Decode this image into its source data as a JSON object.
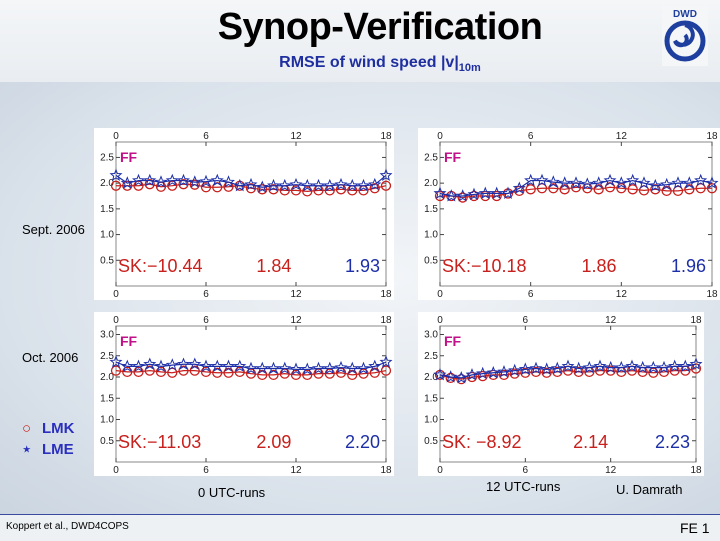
{
  "header": {
    "title": "Synop-Verification",
    "subtitle_main": "RMSE of wind speed |v|",
    "subtitle_sub": "10m",
    "logo_text": "DWD"
  },
  "labels": {
    "row1": "Sept. 2006",
    "row2": "Oct. 2006",
    "col1": "0 UTC-runs",
    "col2": "12 UTC-runs"
  },
  "legend": [
    {
      "symbol": "circle",
      "label": "LMK",
      "color": "#c8201c"
    },
    {
      "symbol": "star",
      "label": "LME",
      "color": "#2a2fbf"
    }
  ],
  "footer": {
    "author_left": "Koppert et al., DWD4COPS",
    "author_right": "U. Damrath",
    "page": "FE 1"
  },
  "colors": {
    "lmk": "#c8201c",
    "lme": "#1c2fa8",
    "ff": "#c0118a"
  },
  "chart_data": [
    {
      "type": "line",
      "panel": "Sept. 2006, 0 UTC-runs",
      "xticks": [
        0,
        6,
        12,
        18
      ],
      "xlim": [
        0,
        18
      ],
      "yticks": [
        "0.5",
        "1.0",
        "1.5",
        "2.0",
        "2.5"
      ],
      "ylim": [
        0,
        2.8
      ],
      "tag": "FF",
      "series": [
        {
          "name": "LMK",
          "values": [
            1.95,
            1.95,
            1.95,
            1.98,
            1.93,
            1.95,
            1.98,
            1.97,
            1.92,
            1.92,
            1.93,
            1.95,
            1.9,
            1.88,
            1.88,
            1.86,
            1.86,
            1.84,
            1.86,
            1.86,
            1.88,
            1.86,
            1.86,
            1.9,
            1.95
          ]
        },
        {
          "name": "LME",
          "values": [
            2.15,
            2.0,
            2.05,
            2.05,
            2.02,
            2.05,
            2.05,
            2.02,
            2.03,
            2.05,
            2.02,
            1.95,
            1.97,
            1.92,
            1.95,
            1.95,
            1.97,
            1.95,
            1.95,
            1.95,
            1.97,
            1.95,
            1.95,
            1.97,
            2.15
          ]
        }
      ],
      "sk_text": "SK:−10.44",
      "lmk_value": "1.84",
      "lme_value": "1.93"
    },
    {
      "type": "line",
      "panel": "Sept. 2006, 12 UTC-runs",
      "xticks": [
        0,
        6,
        12,
        18
      ],
      "xlim": [
        0,
        18
      ],
      "yticks": [
        "0.5",
        "1.0",
        "1.5",
        "2.0",
        "2.5"
      ],
      "ylim": [
        0,
        2.8
      ],
      "tag": "FF",
      "series": [
        {
          "name": "LMK",
          "values": [
            1.75,
            1.75,
            1.72,
            1.75,
            1.75,
            1.75,
            1.8,
            1.85,
            1.88,
            1.9,
            1.9,
            1.88,
            1.92,
            1.9,
            1.88,
            1.92,
            1.9,
            1.88,
            1.86,
            1.88,
            1.85,
            1.85,
            1.88,
            1.9,
            1.9
          ]
        },
        {
          "name": "LME",
          "values": [
            1.8,
            1.75,
            1.75,
            1.78,
            1.8,
            1.8,
            1.8,
            1.9,
            2.05,
            2.05,
            2.02,
            2.0,
            2.0,
            1.98,
            2.0,
            2.05,
            2.0,
            2.05,
            2.0,
            1.95,
            1.97,
            2.0,
            2.0,
            2.05,
            2.0
          ]
        }
      ],
      "sk_text": "SK:−10.18",
      "lmk_value": "1.86",
      "lme_value": "1.96"
    },
    {
      "type": "line",
      "panel": "Oct. 2006, 0 UTC-runs",
      "xticks": [
        0,
        6,
        12,
        18
      ],
      "xlim": [
        0,
        18
      ],
      "yticks": [
        "0.5",
        "1.0",
        "1.5",
        "2.0",
        "2.5",
        "3.0"
      ],
      "ylim": [
        0,
        3.2
      ],
      "tag": "FF",
      "series": [
        {
          "name": "LMK",
          "values": [
            2.15,
            2.12,
            2.12,
            2.15,
            2.12,
            2.1,
            2.15,
            2.15,
            2.12,
            2.1,
            2.1,
            2.12,
            2.08,
            2.05,
            2.05,
            2.08,
            2.05,
            2.05,
            2.08,
            2.08,
            2.1,
            2.05,
            2.08,
            2.1,
            2.15
          ]
        },
        {
          "name": "LME",
          "values": [
            2.35,
            2.25,
            2.25,
            2.3,
            2.25,
            2.28,
            2.3,
            2.3,
            2.25,
            2.25,
            2.25,
            2.25,
            2.2,
            2.2,
            2.2,
            2.2,
            2.18,
            2.18,
            2.2,
            2.2,
            2.22,
            2.2,
            2.2,
            2.25,
            2.35
          ]
        }
      ],
      "sk_text": "SK:−11.03",
      "lmk_value": "2.09",
      "lme_value": "2.20"
    },
    {
      "type": "line",
      "panel": "Oct. 2006, 12 UTC-runs",
      "xticks": [
        0,
        6,
        12,
        18
      ],
      "xlim": [
        0,
        18
      ],
      "yticks": [
        "0.5",
        "1.0",
        "1.5",
        "2.0",
        "2.5",
        "3.0"
      ],
      "ylim": [
        0,
        3.2
      ],
      "tag": "FF",
      "series": [
        {
          "name": "LMK",
          "values": [
            2.05,
            1.98,
            1.95,
            2.0,
            2.02,
            2.05,
            2.05,
            2.08,
            2.1,
            2.12,
            2.1,
            2.12,
            2.15,
            2.12,
            2.12,
            2.15,
            2.15,
            2.12,
            2.15,
            2.12,
            2.1,
            2.12,
            2.15,
            2.15,
            2.2
          ]
        },
        {
          "name": "LME",
          "values": [
            2.05,
            2.0,
            1.98,
            2.05,
            2.08,
            2.1,
            2.12,
            2.15,
            2.18,
            2.2,
            2.18,
            2.2,
            2.25,
            2.2,
            2.22,
            2.25,
            2.22,
            2.22,
            2.25,
            2.22,
            2.22,
            2.22,
            2.25,
            2.25,
            2.3
          ]
        }
      ],
      "sk_text": "SK: −8.92",
      "lmk_value": "2.14",
      "lme_value": "2.23"
    }
  ]
}
